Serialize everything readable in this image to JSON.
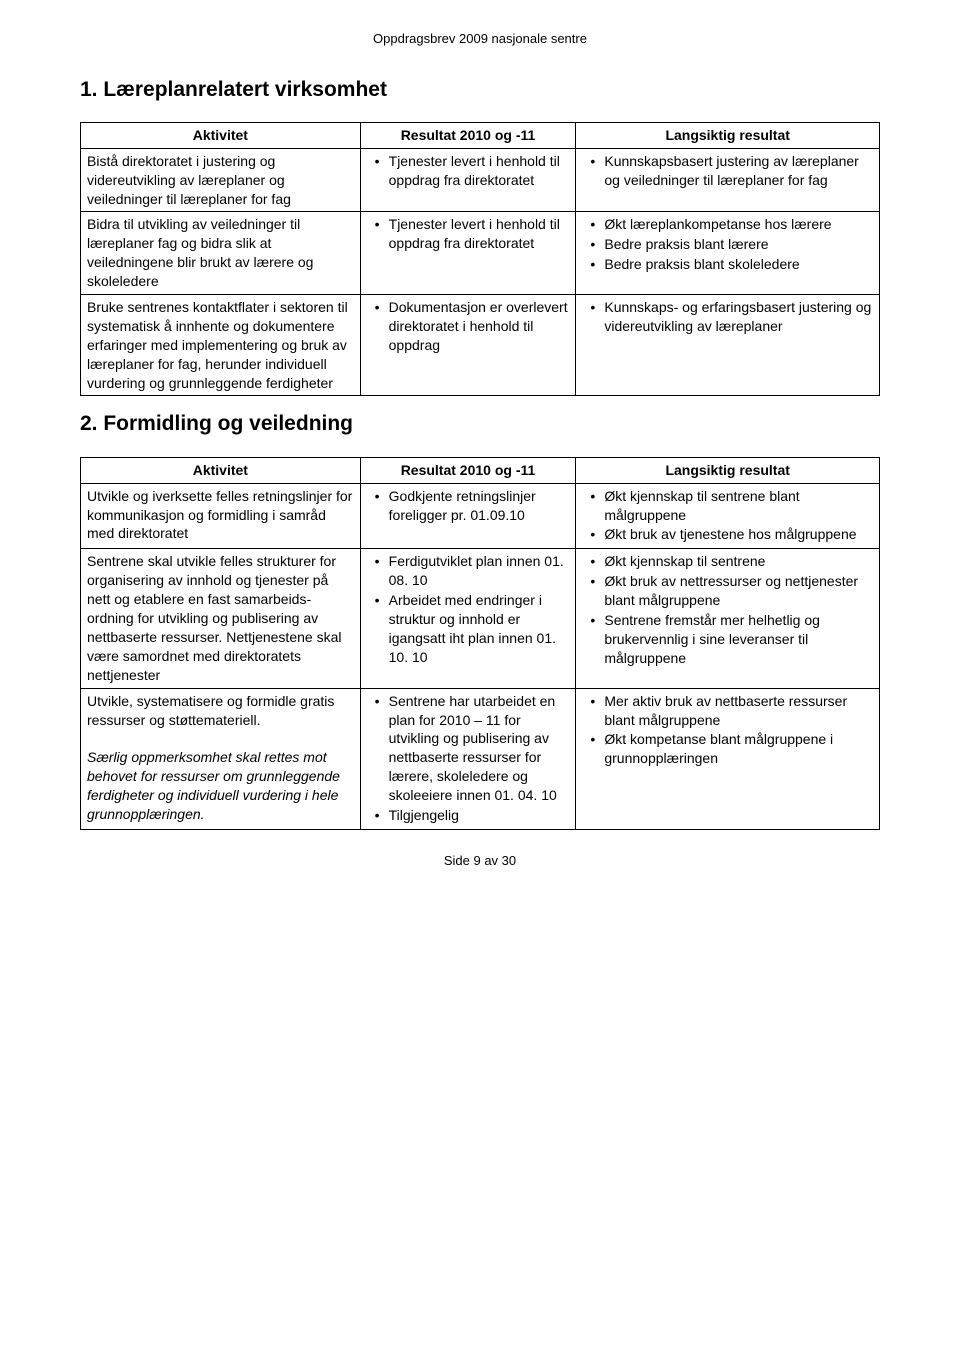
{
  "header": "Oppdragsbrev 2009 nasjonale sentre",
  "section1": {
    "title": "1.   Læreplanrelatert virksomhet",
    "headers": [
      "Aktivitet",
      "Resultat 2010 og -11",
      "Langsiktig resultat"
    ],
    "rows": [
      {
        "activity": "Bistå direktoratet i justering og videreutvikling av læreplaner og veiledninger til læreplaner for fag",
        "result": [
          "Tjenester levert i henhold til oppdrag fra direktoratet"
        ],
        "longterm": [
          "Kunnskapsbasert justering av læreplaner og veiledninger til læreplaner for fag"
        ]
      },
      {
        "activity": "Bidra til utvikling av veiledninger til læreplaner fag og bidra slik at veiledningene blir brukt av lærere og skoleledere",
        "result": [
          "Tjenester levert i henhold til oppdrag fra direktoratet"
        ],
        "longterm": [
          "Økt læreplankompetanse hos lærere",
          "Bedre praksis blant lærere",
          "Bedre praksis blant skoleledere"
        ]
      },
      {
        "activity": "Bruke sentrenes kontaktflater i sektoren til systematisk å innhente og dokumentere erfaringer med implementering og bruk av læreplaner for fag, herunder individuell vurdering og grunnleggende ferdigheter",
        "result": [
          "Dokumentasjon er overlevert direktoratet i henhold til oppdrag"
        ],
        "longterm": [
          "Kunnskaps- og erfaringsbasert justering og videreutvikling av læreplaner"
        ]
      }
    ]
  },
  "section2": {
    "title": "2.   Formidling og veiledning",
    "headers": [
      "Aktivitet",
      "Resultat 2010 og -11",
      "Langsiktig resultat"
    ],
    "rows": [
      {
        "activity": "Utvikle og iverksette felles retningslinjer for kommunikasjon og formidling i samråd med direktoratet",
        "result": [
          "Godkjente retningslinjer foreligger pr. 01.09.10"
        ],
        "longterm": [
          "Økt kjennskap til sentrene blant målgruppene",
          "Økt bruk av tjenestene hos målgruppene"
        ]
      },
      {
        "activity": "Sentrene skal utvikle felles strukturer for organisering av innhold og tjenester på nett og etablere en fast samarbeids-ordning for utvikling og publisering av nettbaserte ressurser.\nNettjenestene skal være samordnet med direktoratets nettjenester",
        "result": [
          "Ferdigutviklet plan innen 01. 08. 10",
          "Arbeidet med endringer i struktur og innhold er igangsatt iht plan innen 01. 10. 10"
        ],
        "longterm": [
          "Økt kjennskap til sentrene",
          "Økt bruk av nettressurser og nettjenester blant målgruppene",
          "Sentrene fremstår mer helhetlig og brukervennlig i sine leveranser til målgruppene"
        ]
      },
      {
        "activity_plain": "Utvikle, systematisere og formidle gratis ressurser og støttemateriell.",
        "activity_italic": "Særlig oppmerksomhet skal rettes mot behovet for ressurser om grunnleggende ferdigheter og individuell vurdering i hele grunnopplæringen.",
        "result": [
          "Sentrene har utarbeidet en plan for 2010 – 11 for utvikling og publisering av nettbaserte ressurser for lærere, skoleledere og skoleeiere innen 01. 04. 10",
          "Tilgjengelig"
        ],
        "longterm": [
          "Mer aktiv bruk av nettbaserte ressurser blant målgruppene",
          "Økt kompetanse blant målgruppene i grunnopplæringen"
        ]
      }
    ]
  },
  "footer": "Side 9 av 30"
}
